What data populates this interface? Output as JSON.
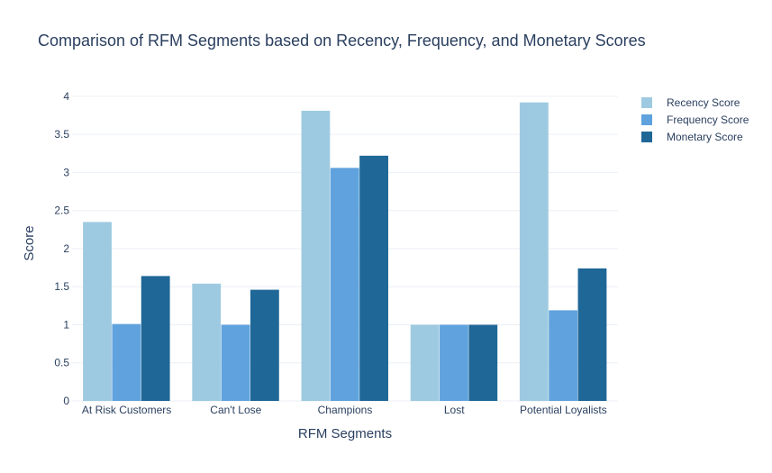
{
  "colors": {
    "recency": "#9ecae1",
    "frequency": "#5fa2dd",
    "monetary": "#1f6797",
    "grid": "#ebeff5",
    "text": "#2a3f5f"
  },
  "chart_data": {
    "type": "bar",
    "title": "Comparison of RFM Segments based on Recency, Frequency, and Monetary Scores",
    "xlabel": "RFM Segments",
    "ylabel": "Score",
    "ylim": [
      0,
      4.2
    ],
    "yticks": [
      "0",
      "0.5",
      "1",
      "1.5",
      "2",
      "2.5",
      "3",
      "3.5",
      "4"
    ],
    "grid": true,
    "legend_position": "top-right",
    "categories": [
      "At Risk Customers",
      "Can't Lose",
      "Champions",
      "Lost",
      "Potential Loyalists"
    ],
    "series": [
      {
        "name": "Recency Score",
        "color_key": "recency",
        "values": [
          2.35,
          1.54,
          3.81,
          1.0,
          3.92
        ]
      },
      {
        "name": "Frequency Score",
        "color_key": "frequency",
        "values": [
          1.01,
          1.0,
          3.06,
          1.0,
          1.19
        ]
      },
      {
        "name": "Monetary Score",
        "color_key": "monetary",
        "values": [
          1.64,
          1.46,
          3.22,
          1.0,
          1.74
        ]
      }
    ]
  }
}
